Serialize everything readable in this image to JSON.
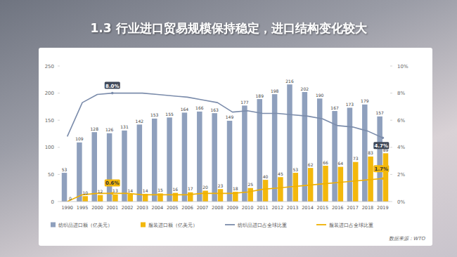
{
  "chart_data": {
    "type": "bar",
    "title": "1.3 行业进口贸易规模保持稳定，进口结构变化较大",
    "source": "数据来源：WTO",
    "categories": [
      "1990",
      "1995",
      "2000",
      "2001",
      "2002",
      "2003",
      "2004",
      "2005",
      "2006",
      "2007",
      "2008",
      "2009",
      "2010",
      "2011",
      "2012",
      "2013",
      "2014",
      "2015",
      "2016",
      "2017",
      "2018",
      "2019"
    ],
    "series": [
      {
        "name": "纺织品进口额（亿美元）",
        "type": "bar",
        "color": "#8fa0bd",
        "data_labels": true,
        "values": [
          53,
          109,
          128,
          126,
          131,
          142,
          153,
          155,
          164,
          166,
          163,
          149,
          177,
          189,
          198,
          216,
          202,
          190,
          167,
          173,
          179,
          157
        ]
      },
      {
        "name": "服装进口额（亿美元）",
        "type": "bar",
        "color": "#f3b80c",
        "data_labels": true,
        "values": [
          0,
          10,
          12,
          13,
          14,
          14,
          15,
          16,
          17,
          20,
          23,
          18,
          25,
          40,
          45,
          53,
          62,
          66,
          64,
          73,
          83,
          89
        ]
      },
      {
        "name": "纺织品进口占全球比重",
        "type": "line",
        "axis": "y2",
        "color": "#7b8cab",
        "values": [
          4.8,
          7.3,
          7.9,
          8.0,
          8.0,
          8.0,
          7.9,
          7.8,
          7.7,
          7.5,
          7.3,
          6.6,
          6.7,
          6.5,
          6.5,
          6.4,
          6.3,
          6.1,
          5.6,
          5.5,
          5.2,
          4.7
        ]
      },
      {
        "name": "服装进口占全球比重",
        "type": "line",
        "axis": "y2",
        "color": "#f0b000",
        "values": [
          0.0,
          0.5,
          0.6,
          0.6,
          0.6,
          0.5,
          0.5,
          0.5,
          0.5,
          0.6,
          0.6,
          0.6,
          0.7,
          0.9,
          1.0,
          1.1,
          1.2,
          1.3,
          1.4,
          1.5,
          1.6,
          1.7
        ]
      }
    ],
    "ylim": [
      0,
      250
    ],
    "yticks": [
      0,
      50,
      100,
      150,
      200,
      250
    ],
    "y2lim": [
      0,
      10
    ],
    "y2ticks": [
      {
        "value": 0,
        "label": "0%"
      },
      {
        "value": 2,
        "label": "2%"
      },
      {
        "value": 4,
        "label": "4%"
      },
      {
        "value": 6,
        "label": "6%"
      },
      {
        "value": 8,
        "label": "8%"
      },
      {
        "value": 10,
        "label": "10%"
      }
    ],
    "annotations": [
      {
        "text": "8.0%",
        "x": "2001",
        "y": 8.0,
        "series": 2
      },
      {
        "text": "0.6%",
        "x": "2001",
        "y": 0.6,
        "series": 3
      },
      {
        "text": "4.7%",
        "x": "2019",
        "y": 4.7,
        "series": 2
      },
      {
        "text": "1.7%",
        "x": "2019",
        "y": 1.7,
        "series": 3
      }
    ],
    "grid": false,
    "legend": "bottom"
  }
}
